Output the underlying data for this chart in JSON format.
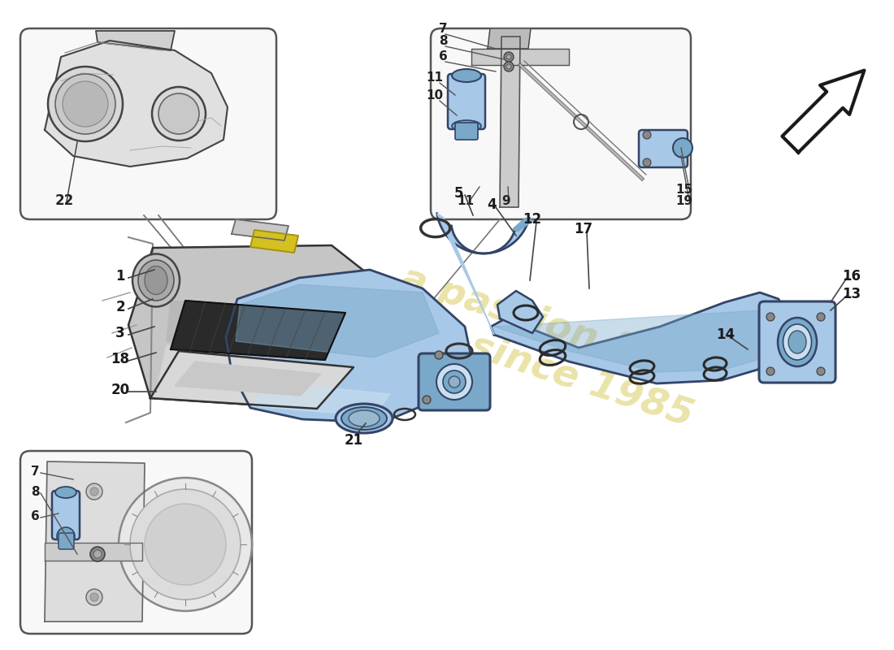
{
  "bg_color": "#ffffff",
  "part_blue": "#a8c8e8",
  "part_blue_dark": "#7aa8c8",
  "part_blue_light": "#c8dff0",
  "watermark_color": "#e8e0a0",
  "line_color": "#1a1a1a"
}
